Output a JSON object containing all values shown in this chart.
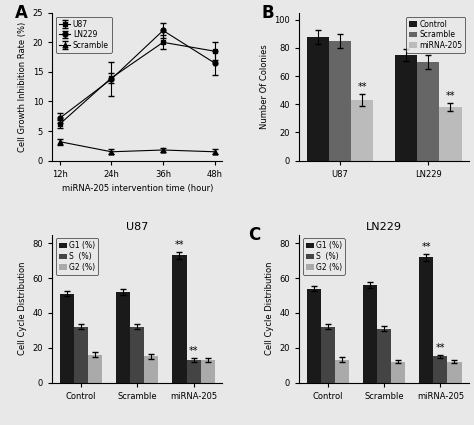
{
  "panel_A": {
    "title": "A",
    "xlabel": "miRNA-205 intervention time (hour)",
    "ylabel": "Cell Growth Inhibition Rate (%)",
    "timepoints": [
      "12h",
      "24h",
      "36h",
      "48h"
    ],
    "U87": {
      "values": [
        6.2,
        14.0,
        20.0,
        18.5
      ],
      "errors": [
        0.6,
        0.8,
        1.2,
        1.5
      ]
    },
    "LN229": {
      "values": [
        7.2,
        13.8,
        22.0,
        16.5
      ],
      "errors": [
        0.8,
        2.8,
        1.3,
        2.0
      ]
    },
    "Scramble": {
      "values": [
        3.2,
        1.5,
        1.8,
        1.5
      ],
      "errors": [
        0.5,
        0.4,
        0.4,
        0.4
      ]
    },
    "ylim": [
      0,
      25
    ],
    "yticks": [
      0,
      5,
      10,
      15,
      20,
      25
    ]
  },
  "panel_B": {
    "title": "B",
    "ylabel": "Number Of Colonies",
    "categories": [
      "U87",
      "LN229"
    ],
    "Control": [
      88,
      75
    ],
    "Scramble": [
      85,
      70
    ],
    "miRNA205": [
      43,
      38
    ],
    "Control_err": [
      5,
      4
    ],
    "Scramble_err": [
      5,
      5
    ],
    "miRNA205_err": [
      4,
      3
    ],
    "ylim": [
      0,
      105
    ],
    "yticks": [
      0,
      20,
      40,
      60,
      80,
      100
    ],
    "bar_colors": [
      "#1a1a1a",
      "#666666",
      "#bbbbbb"
    ]
  },
  "panel_C_U87": {
    "title": "U87",
    "ylabel": "Cell Cycle Distribution",
    "categories": [
      "Control",
      "Scramble",
      "miRNA-205"
    ],
    "G1": [
      51,
      52,
      73
    ],
    "S": [
      32,
      32,
      13
    ],
    "G2": [
      16,
      15,
      13
    ],
    "G1_err": [
      1.5,
      1.5,
      2.0
    ],
    "S_err": [
      1.5,
      1.5,
      1.0
    ],
    "G2_err": [
      1.5,
      1.5,
      1.0
    ],
    "ylim": [
      0,
      85
    ],
    "yticks": [
      0,
      20,
      40,
      60,
      80
    ],
    "bar_colors": [
      "#1a1a1a",
      "#444444",
      "#aaaaaa"
    ]
  },
  "panel_C_LN229": {
    "title": "LN229",
    "ylabel": "Cell Cycle Distribution",
    "categories": [
      "Control",
      "Scramble",
      "miRNA-205"
    ],
    "G1": [
      54,
      56,
      72
    ],
    "S": [
      32,
      31,
      15
    ],
    "G2": [
      13,
      12,
      12
    ],
    "G1_err": [
      1.5,
      1.5,
      2.0
    ],
    "S_err": [
      1.5,
      1.5,
      1.0
    ],
    "G2_err": [
      1.5,
      1.0,
      1.0
    ],
    "ylim": [
      0,
      85
    ],
    "yticks": [
      0,
      20,
      40,
      60,
      80
    ],
    "bar_colors": [
      "#1a1a1a",
      "#444444",
      "#aaaaaa"
    ]
  }
}
